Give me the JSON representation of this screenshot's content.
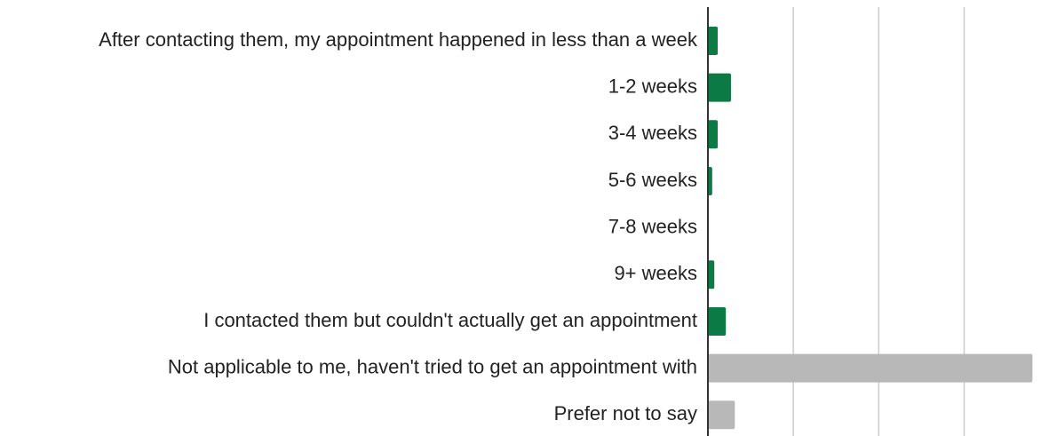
{
  "chart_data": {
    "type": "hbar",
    "categories": [
      "After contacting them, my appointment happened in less than a week",
      "1-2 weeks",
      "3-4 weeks",
      "5-6 weeks",
      "7-8 weeks",
      "9+ weeks",
      "I contacted them but couldn't actually get an appointment",
      "Not applicable to me, haven't tried to get an appointment with",
      "Prefer not to say"
    ],
    "values": [
      2.3,
      5.4,
      2.3,
      1.0,
      0,
      1.5,
      4.2,
      76,
      6.3
    ],
    "colors": [
      "#0b7a45",
      "#0b7a45",
      "#0b7a45",
      "#0b7a45",
      "#0b7a45",
      "#0b7a45",
      "#0b7a45",
      "#b8b8b8",
      "#b8b8b8"
    ],
    "xlim": [
      0,
      78
    ],
    "xticks": [
      0,
      20,
      40,
      60
    ],
    "grid": true
  }
}
